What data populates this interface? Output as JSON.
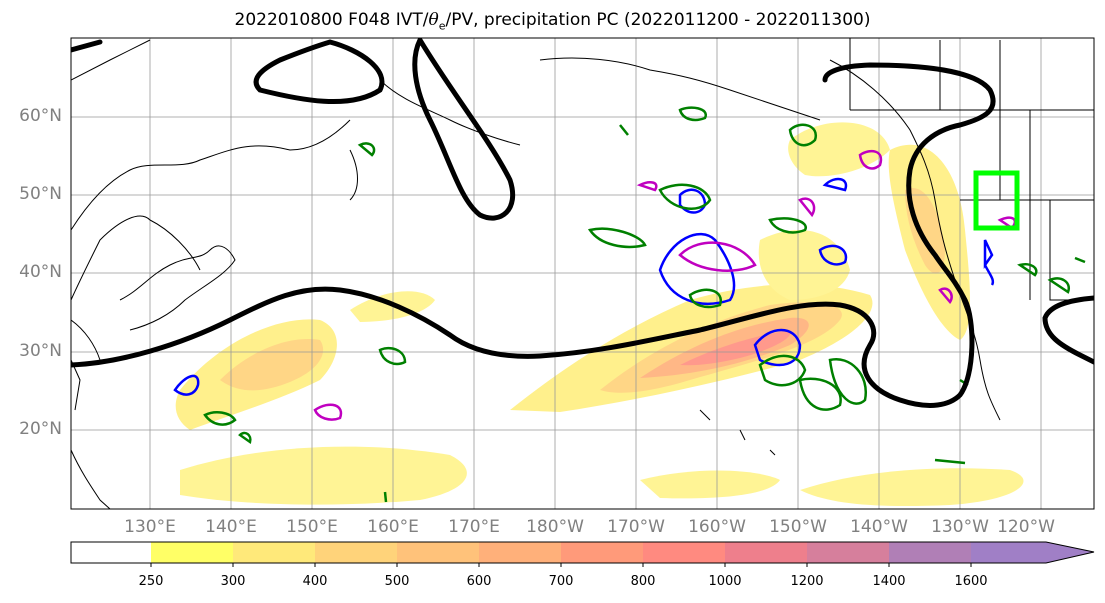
{
  "title": {
    "prefix": "2022010800 F048 IVT/",
    "theta": "θ",
    "sub": "e",
    "suffix": "/PV, precipitation PC (2022011200 - 2022011300)"
  },
  "map": {
    "lat_labels": [
      "60°N",
      "50°N",
      "40°N",
      "30°N",
      "20°N"
    ],
    "lon_labels": [
      "130°E",
      "140°E",
      "150°E",
      "160°E",
      "170°E",
      "180°W",
      "170°W",
      "160°W",
      "150°W",
      "140°W",
      "130°W",
      "120°W"
    ],
    "ivt_colors": [
      "#ffff66",
      "#ffe97a",
      "#ffd37a",
      "#ffc27a",
      "#ffb07a",
      "#ff9a7a",
      "#ff8a80",
      "#ee7f8c",
      "#d67f9c",
      "#b07fb6",
      "#a07fc6"
    ],
    "contour_colors": {
      "pv": "#000000",
      "precip": "#008000",
      "theta_cold": "#0000ff",
      "theta_warm": "#c000c0",
      "box": "#00ff00"
    }
  },
  "colorbar": {
    "ticks": [
      "250",
      "300",
      "400",
      "500",
      "600",
      "700",
      "800",
      "1000",
      "1200",
      "1400",
      "1600"
    ]
  }
}
